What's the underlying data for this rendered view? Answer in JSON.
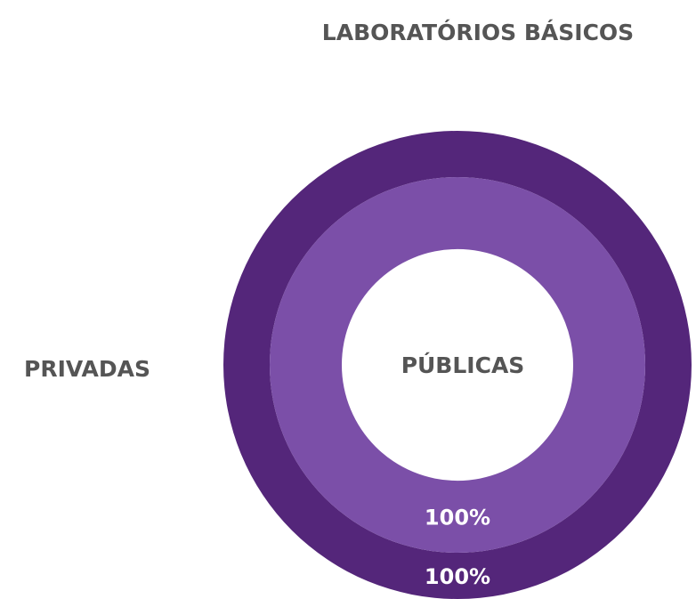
{
  "chart_data": {
    "type": "donut",
    "title": "LABORATÓRIOS BÁSICOS",
    "series": [
      {
        "name": "PRIVADAS",
        "color": "#54267a",
        "values": [
          100
        ],
        "value_labels": [
          "100%"
        ]
      },
      {
        "name": "PÚBLICAS",
        "color": "#7b4fa8",
        "values": [
          100
        ],
        "value_labels": [
          "100%"
        ]
      }
    ]
  }
}
